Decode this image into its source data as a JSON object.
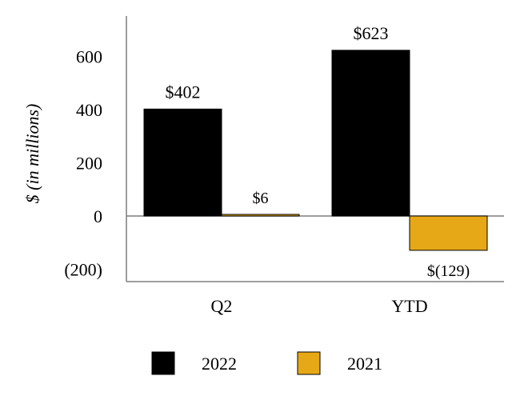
{
  "chart_data": {
    "type": "bar",
    "categories": [
      "Q2",
      "YTD"
    ],
    "series": [
      {
        "name": "2022",
        "values": [
          402,
          623
        ],
        "color": "#000000",
        "data_labels": [
          "$402",
          "$623"
        ]
      },
      {
        "name": "2021",
        "values": [
          6,
          -129
        ],
        "color": "#E6A817",
        "data_labels": [
          "$6",
          "$(129)"
        ]
      }
    ],
    "ylabel": "$ (in millions)",
    "yticks": [
      {
        "value": 600,
        "label": "600"
      },
      {
        "value": 400,
        "label": "400"
      },
      {
        "value": 200,
        "label": "200"
      },
      {
        "value": 0,
        "label": "0"
      },
      {
        "value": -200,
        "label": "(200)"
      }
    ],
    "ylim": [
      -250,
      750
    ],
    "grid": false,
    "legend_position": "bottom"
  }
}
